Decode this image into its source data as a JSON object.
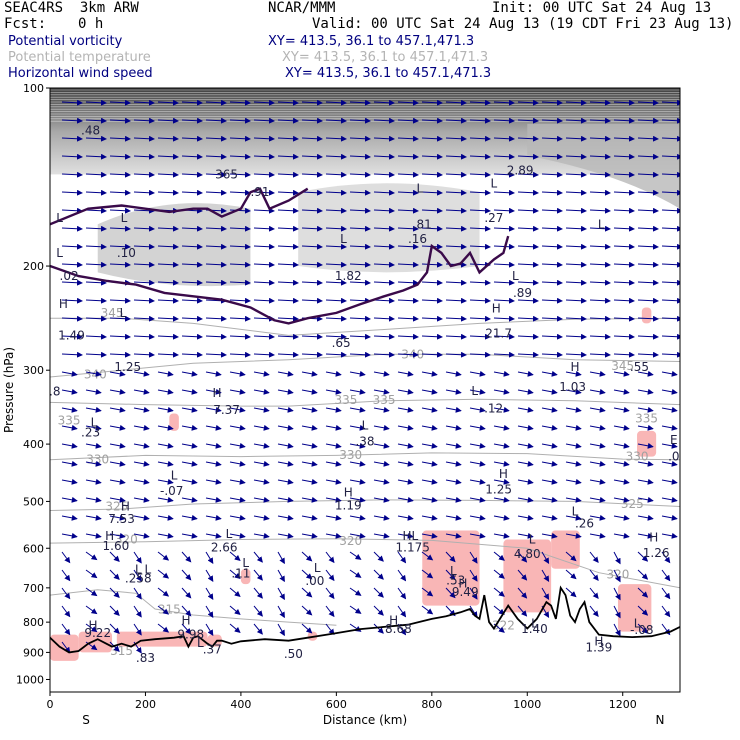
{
  "header": {
    "model": "SEAC4RS  3km ARW",
    "org": "NCAR/MMM",
    "init": "Init: 00 UTC Sat 24 Aug 13",
    "fcst_label": "Fcst:",
    "fcst_value": "0 h",
    "valid": "Valid: 00 UTC Sat 24 Aug 13 (19 CDT Fri 23 Aug 13)"
  },
  "fields": [
    {
      "name": "Potential vorticity",
      "xy": "XY= 413.5, 36.1 to 457.1,471.3",
      "color": "#000080"
    },
    {
      "name": "Potential temperature",
      "xy": "XY= 413.5, 36.1 to 457.1,471.3",
      "color": "#b4b4b4"
    },
    {
      "name": "Horizontal wind speed",
      "xy": "XY= 413.5, 36.1 to 457.1,471.3",
      "color": "#000080"
    }
  ],
  "chart_data": {
    "type": "cross-section",
    "xlabel": "Distance (km)",
    "ylabel": "Pressure (hPa)",
    "xlim": [
      0,
      1320
    ],
    "ylim": [
      100,
      1050
    ],
    "y_scale": "log-pressure (inverted)",
    "x_ticks": [
      0,
      200,
      400,
      600,
      800,
      1000,
      1200
    ],
    "y_ticks": [
      100,
      200,
      300,
      400,
      500,
      600,
      700,
      800,
      900,
      1000
    ],
    "x_end_labels": {
      "left": "S",
      "right": "N"
    },
    "theta_contours": [
      {
        "label": "345",
        "points": [
          [
            0,
            245
          ],
          [
            150,
            245
          ],
          [
            300,
            250
          ],
          [
            500,
            262
          ],
          [
            700,
            256
          ],
          [
            900,
            250
          ],
          [
            1100,
            246
          ],
          [
            1320,
            245
          ]
        ]
      },
      {
        "label": "340",
        "points": [
          [
            0,
            308
          ],
          [
            150,
            300
          ],
          [
            300,
            292
          ],
          [
            500,
            288
          ],
          [
            700,
            282
          ],
          [
            900,
            282
          ],
          [
            1100,
            288
          ],
          [
            1320,
            290
          ]
        ]
      },
      {
        "label": "335",
        "points": [
          [
            0,
            340
          ],
          [
            200,
            343
          ],
          [
            400,
            345
          ],
          [
            500,
            345
          ],
          [
            700,
            338
          ],
          [
            900,
            336
          ],
          [
            1100,
            338
          ],
          [
            1320,
            343
          ]
        ]
      },
      {
        "label": "330",
        "points": [
          [
            0,
            425
          ],
          [
            200,
            418
          ],
          [
            400,
            420
          ],
          [
            600,
            418
          ],
          [
            800,
            414
          ],
          [
            1000,
            415
          ],
          [
            1200,
            424
          ],
          [
            1320,
            425
          ]
        ]
      },
      {
        "label": "325",
        "points": [
          [
            0,
            518
          ],
          [
            150,
            515
          ],
          [
            300,
            505
          ],
          [
            500,
            500
          ],
          [
            700,
            497
          ],
          [
            900,
            498
          ],
          [
            1100,
            500
          ],
          [
            1320,
            510
          ]
        ]
      },
      {
        "label": "320",
        "points": [
          [
            0,
            588
          ],
          [
            200,
            585
          ],
          [
            400,
            580
          ],
          [
            600,
            578
          ],
          [
            800,
            582
          ],
          [
            1000,
            600
          ],
          [
            1150,
            660
          ],
          [
            1320,
            700
          ]
        ]
      },
      {
        "label": "315",
        "points": [
          [
            0,
            720
          ],
          [
            100,
            705
          ],
          [
            180,
            715
          ],
          [
            220,
            760
          ],
          [
            300,
            778
          ],
          [
            400,
            790
          ],
          [
            500,
            800
          ],
          [
            600,
            810
          ]
        ]
      }
    ],
    "theta_labels": [
      {
        "label": "345",
        "x": 130,
        "p": 240
      },
      {
        "label": "340",
        "x": 95,
        "p": 305
      },
      {
        "label": "340",
        "x": 760,
        "p": 282
      },
      {
        "label": "345",
        "x": 1200,
        "p": 295
      },
      {
        "label": "335",
        "x": 620,
        "p": 337
      },
      {
        "label": "335",
        "x": 700,
        "p": 337
      },
      {
        "label": "335",
        "x": 40,
        "p": 365
      },
      {
        "label": "335",
        "x": 1250,
        "p": 362
      },
      {
        "label": "330",
        "x": 100,
        "p": 425
      },
      {
        "label": "330",
        "x": 630,
        "p": 417
      },
      {
        "label": "330",
        "x": 1230,
        "p": 420
      },
      {
        "label": "325",
        "x": 140,
        "p": 510
      },
      {
        "label": "325",
        "x": 1220,
        "p": 505
      },
      {
        "label": "320",
        "x": 160,
        "p": 580
      },
      {
        "label": "320",
        "x": 630,
        "p": 583
      },
      {
        "label": "320",
        "x": 1190,
        "p": 665
      },
      {
        "label": "315",
        "x": 250,
        "p": 762
      },
      {
        "label": "315",
        "x": 150,
        "p": 895
      },
      {
        "label": "322",
        "x": 950,
        "p": 810
      }
    ],
    "terrain": [
      [
        0,
        850
      ],
      [
        20,
        880
      ],
      [
        40,
        900
      ],
      [
        60,
        895
      ],
      [
        80,
        870
      ],
      [
        100,
        855
      ],
      [
        130,
        880
      ],
      [
        150,
        870
      ],
      [
        170,
        880
      ],
      [
        190,
        860
      ],
      [
        220,
        855
      ],
      [
        260,
        850
      ],
      [
        280,
        845
      ],
      [
        290,
        880
      ],
      [
        300,
        850
      ],
      [
        310,
        845
      ],
      [
        330,
        870
      ],
      [
        340,
        880
      ],
      [
        350,
        860
      ],
      [
        360,
        860
      ],
      [
        380,
        870
      ],
      [
        400,
        862
      ],
      [
        450,
        855
      ],
      [
        500,
        860
      ],
      [
        540,
        850
      ],
      [
        600,
        835
      ],
      [
        650,
        822
      ],
      [
        700,
        815
      ],
      [
        750,
        808
      ],
      [
        800,
        790
      ],
      [
        830,
        782
      ],
      [
        860,
        770
      ],
      [
        880,
        760
      ],
      [
        890,
        780
      ],
      [
        900,
        790
      ],
      [
        910,
        720
      ],
      [
        920,
        800
      ],
      [
        930,
        820
      ],
      [
        960,
        750
      ],
      [
        980,
        790
      ],
      [
        1000,
        820
      ],
      [
        1020,
        790
      ],
      [
        1040,
        740
      ],
      [
        1050,
        750
      ],
      [
        1060,
        790
      ],
      [
        1070,
        700
      ],
      [
        1080,
        720
      ],
      [
        1090,
        780
      ],
      [
        1100,
        800
      ],
      [
        1110,
        760
      ],
      [
        1120,
        740
      ],
      [
        1130,
        800
      ],
      [
        1150,
        840
      ],
      [
        1180,
        845
      ],
      [
        1220,
        848
      ],
      [
        1260,
        845
      ],
      [
        1300,
        830
      ],
      [
        1320,
        815
      ]
    ],
    "hl_labels": [
      {
        "t": "L",
        "x": 20,
        "p": 166
      },
      {
        "t": ".48",
        "x": 85,
        "p": 118
      },
      {
        "t": "L",
        "x": 20,
        "p": 190
      },
      {
        "t": ".02",
        "x": 40,
        "p": 208
      },
      {
        "t": "H",
        "x": 28,
        "p": 232
      },
      {
        "t": "1.49",
        "x": 45,
        "p": 262
      },
      {
        "t": "L",
        "x": 155,
        "p": 166
      },
      {
        "t": ".10",
        "x": 160,
        "p": 190
      },
      {
        "t": "L",
        "x": 153,
        "p": 240
      },
      {
        "t": "1.25",
        "x": 163,
        "p": 296
      },
      {
        "t": ".8",
        "x": 10,
        "p": 326
      },
      {
        "t": "L",
        "x": 92,
        "p": 368
      },
      {
        "t": ".23",
        "x": 85,
        "p": 382
      },
      {
        "t": "H",
        "x": 350,
        "p": 328
      },
      {
        "t": "7.37",
        "x": 370,
        "p": 350
      },
      {
        "t": "L",
        "x": 260,
        "p": 452
      },
      {
        "t": "-.07",
        "x": 255,
        "p": 480
      },
      {
        "t": "H",
        "x": 158,
        "p": 510
      },
      {
        "t": "7.53",
        "x": 150,
        "p": 535
      },
      {
        "t": "H",
        "x": 125,
        "p": 572
      },
      {
        "t": "1.60",
        "x": 138,
        "p": 595
      },
      {
        "t": "L",
        "x": 185,
        "p": 652
      },
      {
        "t": "L",
        "x": 205,
        "p": 652
      },
      {
        "t": ".258",
        "x": 185,
        "p": 675
      },
      {
        "t": "L",
        "x": 375,
        "p": 568
      },
      {
        "t": "2.66",
        "x": 365,
        "p": 598
      },
      {
        "t": "L",
        "x": 410,
        "p": 636
      },
      {
        "t": ".11",
        "x": 400,
        "p": 662
      },
      {
        "t": "L",
        "x": 560,
        "p": 648
      },
      {
        "t": ".00",
        "x": 555,
        "p": 682
      },
      {
        "t": "H",
        "x": 625,
        "p": 483
      },
      {
        "t": "1.19",
        "x": 625,
        "p": 508
      },
      {
        "t": "L",
        "x": 660,
        "p": 372
      },
      {
        "t": ".38",
        "x": 660,
        "p": 396
      },
      {
        "t": ".65",
        "x": 610,
        "p": 270
      },
      {
        "t": "L",
        "x": 615,
        "p": 180
      },
      {
        "t": "1.82",
        "x": 625,
        "p": 208
      },
      {
        "t": ".16",
        "x": 770,
        "p": 180
      },
      {
        "t": "L",
        "x": 775,
        "p": 148
      },
      {
        "t": ".81",
        "x": 780,
        "p": 170
      },
      {
        "t": ".27",
        "x": 930,
        "p": 166
      },
      {
        "t": "L",
        "x": 930,
        "p": 145
      },
      {
        "t": "2.89",
        "x": 985,
        "p": 138
      },
      {
        "t": ".89",
        "x": 990,
        "p": 222
      },
      {
        "t": "L",
        "x": 975,
        "p": 208
      },
      {
        "t": "H",
        "x": 935,
        "p": 236
      },
      {
        "t": "21.7",
        "x": 940,
        "p": 260
      },
      {
        "t": "L",
        "x": 890,
        "p": 325
      },
      {
        "t": "-.12",
        "x": 925,
        "p": 348
      },
      {
        "t": "H",
        "x": 1100,
        "p": 296
      },
      {
        "t": "1.03",
        "x": 1095,
        "p": 320
      },
      {
        "t": "L",
        "x": 1155,
        "p": 170
      },
      {
        "t": ".55",
        "x": 1235,
        "p": 296
      },
      {
        "t": "E",
        "x": 1307,
        "p": 394
      },
      {
        "t": ".0",
        "x": 1307,
        "p": 420
      },
      {
        "t": "H",
        "x": 950,
        "p": 449
      },
      {
        "t": "1.25",
        "x": 940,
        "p": 477
      },
      {
        "t": "L",
        "x": 1100,
        "p": 520
      },
      {
        "t": ".26",
        "x": 1120,
        "p": 545
      },
      {
        "t": "L",
        "x": 1010,
        "p": 580
      },
      {
        "t": "4.80",
        "x": 1000,
        "p": 614
      },
      {
        "t": "H",
        "x": 1265,
        "p": 575
      },
      {
        "t": "1.26",
        "x": 1270,
        "p": 611
      },
      {
        "t": "HL",
        "x": 755,
        "p": 572
      },
      {
        "t": "1.175",
        "x": 760,
        "p": 598
      },
      {
        "t": "L",
        "x": 845,
        "p": 655
      },
      {
        "t": ".53",
        "x": 850,
        "p": 680
      },
      {
        "t": "H",
        "x": 865,
        "p": 688
      },
      {
        "t": "9.49",
        "x": 870,
        "p": 712
      },
      {
        "t": "H",
        "x": 720,
        "p": 795
      },
      {
        "t": "8.68",
        "x": 730,
        "p": 822
      },
      {
        "t": "L",
        "x": 1015,
        "p": 805
      },
      {
        "t": "1.40",
        "x": 1015,
        "p": 822
      },
      {
        "t": "L",
        "x": 1230,
        "p": 805
      },
      {
        "t": "-.08",
        "x": 1240,
        "p": 825
      },
      {
        "t": "H",
        "x": 90,
        "p": 810
      },
      {
        "t": "9.22",
        "x": 100,
        "p": 835
      },
      {
        "t": "H",
        "x": 285,
        "p": 795
      },
      {
        "t": "9.98",
        "x": 295,
        "p": 840
      },
      {
        "t": "L",
        "x": 315,
        "p": 868
      },
      {
        "t": ".37",
        "x": 340,
        "p": 890
      },
      {
        "t": ".50",
        "x": 510,
        "p": 905
      },
      {
        "t": "H",
        "x": 1150,
        "p": 862
      },
      {
        "t": "1.39",
        "x": 1150,
        "p": 883
      },
      {
        "t": ".83",
        "x": 200,
        "p": 920
      },
      {
        "t": "365",
        "x": 370,
        "p": 140
      },
      {
        "t": ".91",
        "x": 440,
        "p": 150
      }
    ],
    "pv_shading_regions": [
      {
        "x": [
          0,
          60
        ],
        "p": [
          840,
          930
        ],
        "level": "low"
      },
      {
        "x": [
          60,
          130
        ],
        "p": [
          830,
          900
        ],
        "level": "low"
      },
      {
        "x": [
          140,
          330
        ],
        "p": [
          830,
          880
        ],
        "level": "low"
      },
      {
        "x": [
          330,
          360
        ],
        "p": [
          840,
          880
        ],
        "level": "low"
      },
      {
        "x": [
          400,
          420
        ],
        "p": [
          650,
          690
        ],
        "level": "low"
      },
      {
        "x": [
          540,
          560
        ],
        "p": [
          830,
          860
        ],
        "level": "low"
      },
      {
        "x": [
          780,
          900
        ],
        "p": [
          560,
          750
        ],
        "level": "low"
      },
      {
        "x": [
          950,
          1050
        ],
        "p": [
          580,
          770
        ],
        "level": "low"
      },
      {
        "x": [
          1050,
          1110
        ],
        "p": [
          560,
          650
        ],
        "level": "low"
      },
      {
        "x": [
          1190,
          1260
        ],
        "p": [
          690,
          830
        ],
        "level": "low"
      },
      {
        "x": [
          1230,
          1270
        ],
        "p": [
          380,
          420
        ],
        "level": "low"
      },
      {
        "x": [
          1240,
          1260
        ],
        "p": [
          235,
          250
        ],
        "level": "low"
      },
      {
        "x": [
          250,
          270
        ],
        "p": [
          355,
          380
        ],
        "level": "low"
      }
    ],
    "pv_contour_2pvu": [
      [
        0,
        200
      ],
      [
        60,
        208
      ],
      [
        120,
        212
      ],
      [
        180,
        215
      ],
      [
        240,
        222
      ],
      [
        300,
        225
      ],
      [
        360,
        228
      ],
      [
        420,
        235
      ],
      [
        470,
        247
      ],
      [
        500,
        250
      ],
      [
        540,
        245
      ],
      [
        600,
        240
      ],
      [
        650,
        232
      ],
      [
        700,
        225
      ],
      [
        740,
        220
      ],
      [
        770,
        215
      ],
      [
        790,
        205
      ],
      [
        800,
        185
      ],
      [
        820,
        190
      ],
      [
        840,
        200
      ],
      [
        860,
        198
      ],
      [
        880,
        190
      ],
      [
        900,
        205
      ],
      [
        930,
        195
      ],
      [
        950,
        190
      ],
      [
        960,
        178
      ]
    ],
    "pv_contour_top": [
      [
        0,
        170
      ],
      [
        80,
        160
      ],
      [
        150,
        158
      ],
      [
        250,
        162
      ],
      [
        300,
        160
      ],
      [
        330,
        160
      ],
      [
        360,
        165
      ],
      [
        400,
        160
      ],
      [
        420,
        150
      ],
      [
        440,
        148
      ],
      [
        460,
        160
      ],
      [
        500,
        155
      ],
      [
        540,
        148
      ]
    ]
  }
}
